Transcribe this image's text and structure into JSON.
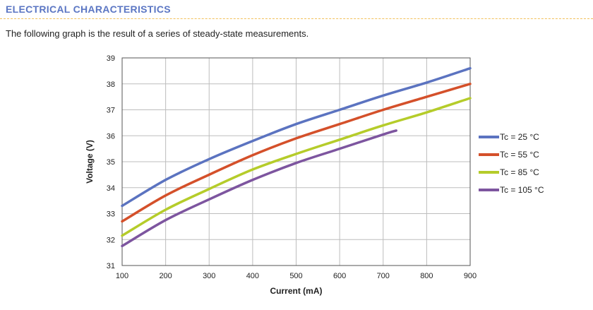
{
  "section": {
    "title": "ELECTRICAL CHARACTERISTICS"
  },
  "intro": "The following graph is the result of a series of steady-state measurements.",
  "chart_data": {
    "type": "line",
    "xlabel": "Current (mA)",
    "ylabel": "Voltage (V)",
    "xlim": [
      100,
      900
    ],
    "ylim": [
      31,
      39
    ],
    "xticks": [
      100,
      200,
      300,
      400,
      500,
      600,
      700,
      800,
      900
    ],
    "yticks": [
      31,
      32,
      33,
      34,
      35,
      36,
      37,
      38,
      39
    ],
    "grid": true,
    "legend_position": "right",
    "series": [
      {
        "name": "Tc = 25 °C",
        "color": "#5b73c0",
        "x": [
          100,
          200,
          300,
          400,
          500,
          600,
          700,
          800,
          900
        ],
        "y": [
          33.3,
          34.3,
          35.1,
          35.8,
          36.45,
          37.0,
          37.55,
          38.05,
          38.6
        ]
      },
      {
        "name": "Tc = 55 °C",
        "color": "#d4502a",
        "x": [
          100,
          200,
          300,
          400,
          500,
          600,
          700,
          800,
          900
        ],
        "y": [
          32.7,
          33.7,
          34.5,
          35.25,
          35.9,
          36.45,
          37.0,
          37.5,
          38.0
        ]
      },
      {
        "name": "Tc = 85 °C",
        "color": "#b5cc2a",
        "x": [
          100,
          200,
          300,
          400,
          500,
          600,
          700,
          800,
          900
        ],
        "y": [
          32.15,
          33.15,
          33.95,
          34.7,
          35.3,
          35.85,
          36.4,
          36.9,
          37.45
        ]
      },
      {
        "name": "Tc = 105 °C",
        "color": "#7d559f",
        "x": [
          100,
          200,
          300,
          400,
          500,
          600,
          700,
          730
        ],
        "y": [
          31.75,
          32.75,
          33.55,
          34.3,
          34.95,
          35.5,
          36.05,
          36.2
        ]
      }
    ]
  }
}
